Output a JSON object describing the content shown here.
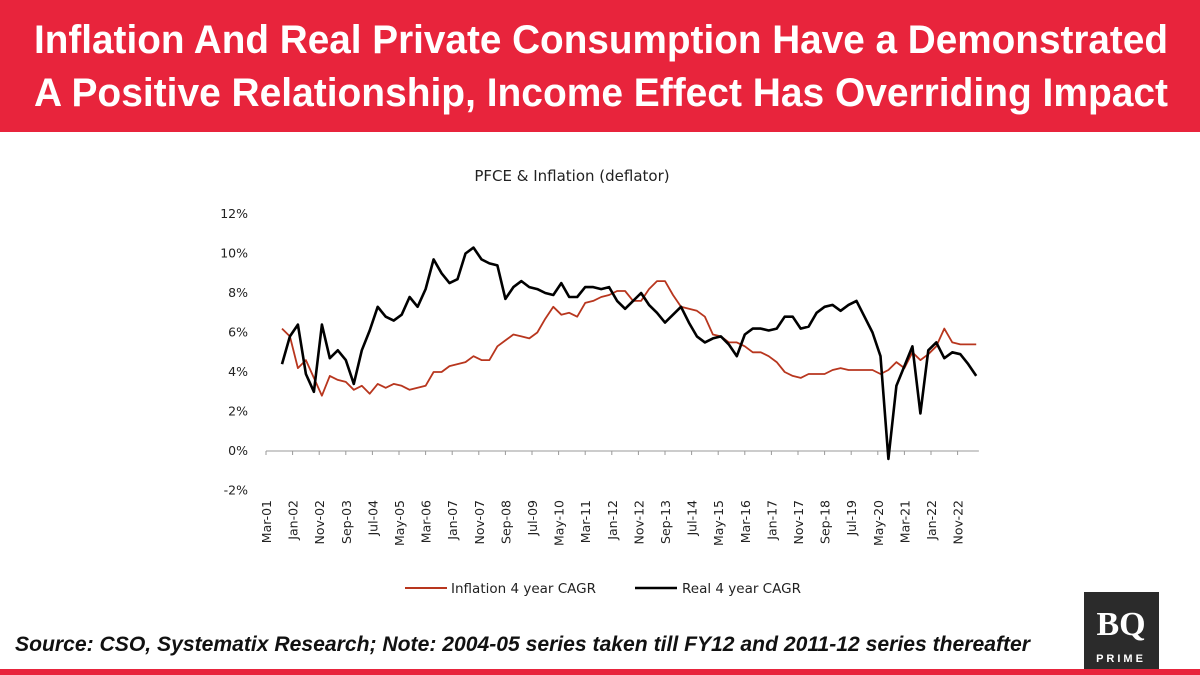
{
  "header": {
    "line1": "Inflation And Real Private Consumption Have a Demonstrated",
    "line2": "A Positive Relationship, Income Effect Has Overriding Impact",
    "background_color": "#E8243C"
  },
  "footer": {
    "source": "Source: CSO, Systematix Research; Note: 2004-05 series taken till FY12 and 2011-12 series thereafter",
    "logo": {
      "text_main": "BQ",
      "text_sub": "PRIME"
    }
  },
  "chart_data": {
    "type": "line",
    "title": "PFCE & Inflation (deflator)",
    "ylim": [
      -2,
      12
    ],
    "y_ticks": [
      "-2%",
      "0%",
      "2%",
      "4%",
      "6%",
      "8%",
      "10%",
      "12%"
    ],
    "y_tick_values": [
      -2,
      0,
      2,
      4,
      6,
      8,
      10,
      12
    ],
    "x_ticks": [
      "Mar-01",
      "Jan-02",
      "Nov-02",
      "Sep-03",
      "Jul-04",
      "May-05",
      "Mar-06",
      "Jan-07",
      "Nov-07",
      "Sep-08",
      "Jul-09",
      "May-10",
      "Mar-11",
      "Jan-12",
      "Nov-12",
      "Sep-13",
      "Jul-14",
      "May-15",
      "Mar-16",
      "Jan-17",
      "Nov-17",
      "Sep-18",
      "Jul-19",
      "May-20",
      "Mar-21",
      "Jan-22",
      "Nov-22"
    ],
    "x_range": [
      "Mar-01",
      "Jul-23"
    ],
    "grid": false,
    "legend_placement": "bottom",
    "x": [
      "Sep-01",
      "Dec-01",
      "Mar-02",
      "Jun-02",
      "Sep-02",
      "Dec-02",
      "Mar-03",
      "Jun-03",
      "Sep-03",
      "Dec-03",
      "Mar-04",
      "Jun-04",
      "Sep-04",
      "Dec-04",
      "Mar-05",
      "Jun-05",
      "Sep-05",
      "Dec-05",
      "Mar-06",
      "Jun-06",
      "Sep-06",
      "Dec-06",
      "Mar-07",
      "Jun-07",
      "Sep-07",
      "Dec-07",
      "Mar-08",
      "Jun-08",
      "Sep-08",
      "Dec-08",
      "Mar-09",
      "Jun-09",
      "Sep-09",
      "Dec-09",
      "Mar-10",
      "Jun-10",
      "Sep-10",
      "Dec-10",
      "Mar-11",
      "Jun-11",
      "Sep-11",
      "Dec-11",
      "Mar-12",
      "Jun-12",
      "Sep-12",
      "Dec-12",
      "Mar-13",
      "Jun-13",
      "Sep-13",
      "Dec-13",
      "Mar-14",
      "Jun-14",
      "Sep-14",
      "Dec-14",
      "Mar-15",
      "Jun-15",
      "Sep-15",
      "Dec-15",
      "Mar-16",
      "Jun-16",
      "Sep-16",
      "Dec-16",
      "Mar-17",
      "Jun-17",
      "Sep-17",
      "Dec-17",
      "Mar-18",
      "Jun-18",
      "Sep-18",
      "Dec-18",
      "Mar-19",
      "Jun-19",
      "Sep-19",
      "Dec-19",
      "Mar-20",
      "Jun-20",
      "Sep-20",
      "Dec-20",
      "Mar-21",
      "Jun-21",
      "Sep-21",
      "Dec-21",
      "Mar-22",
      "Jun-22",
      "Sep-22",
      "Dec-22",
      "Mar-23",
      "Jun-23"
    ],
    "series": [
      {
        "name": "Inflation 4 year CAGR",
        "color": "#B8361E",
        "values": [
          6.2,
          5.8,
          4.2,
          4.6,
          3.7,
          2.8,
          3.8,
          3.6,
          3.5,
          3.1,
          3.3,
          2.9,
          3.4,
          3.2,
          3.4,
          3.3,
          3.1,
          3.2,
          3.3,
          4.0,
          4.0,
          4.3,
          4.4,
          4.5,
          4.8,
          4.6,
          4.6,
          5.3,
          5.6,
          5.9,
          5.8,
          5.7,
          6.0,
          6.7,
          7.3,
          6.9,
          7.0,
          6.8,
          7.5,
          7.6,
          7.8,
          7.9,
          8.1,
          8.1,
          7.6,
          7.6,
          8.2,
          8.6,
          8.6,
          7.9,
          7.3,
          7.2,
          7.1,
          6.8,
          5.9,
          5.8,
          5.5,
          5.5,
          5.3,
          5.0,
          5.0,
          4.8,
          4.5,
          4.0,
          3.8,
          3.7,
          3.9,
          3.9,
          3.9,
          4.1,
          4.2,
          4.1,
          4.1,
          4.1,
          4.1,
          3.9,
          4.1,
          4.5,
          4.2,
          5.0,
          4.6,
          4.9,
          5.3,
          6.2,
          5.5,
          5.4,
          5.4,
          5.4
        ]
      },
      {
        "name": "Real 4 year CAGR",
        "color": "#000000",
        "values": [
          4.4,
          5.8,
          6.4,
          3.9,
          3.0,
          6.4,
          4.7,
          5.1,
          4.6,
          3.4,
          5.1,
          6.1,
          7.3,
          6.8,
          6.6,
          6.9,
          7.8,
          7.3,
          8.2,
          9.7,
          9.0,
          8.5,
          8.7,
          10.0,
          10.3,
          9.7,
          9.5,
          9.4,
          7.7,
          8.3,
          8.6,
          8.3,
          8.2,
          8.0,
          7.9,
          8.5,
          7.8,
          7.8,
          8.3,
          8.3,
          8.2,
          8.3,
          7.6,
          7.2,
          7.6,
          8.0,
          7.4,
          7.0,
          6.5,
          6.9,
          7.3,
          6.5,
          5.8,
          5.5,
          5.7,
          5.8,
          5.4,
          4.8,
          5.9,
          6.2,
          6.2,
          6.1,
          6.2,
          6.8,
          6.8,
          6.2,
          6.3,
          7.0,
          7.3,
          7.4,
          7.1,
          7.4,
          7.6,
          6.8,
          6.0,
          4.8,
          -0.4,
          3.3,
          4.3,
          5.3,
          1.9,
          5.1,
          5.5,
          4.7,
          5.0,
          4.9,
          4.4,
          3.8
        ]
      }
    ]
  }
}
